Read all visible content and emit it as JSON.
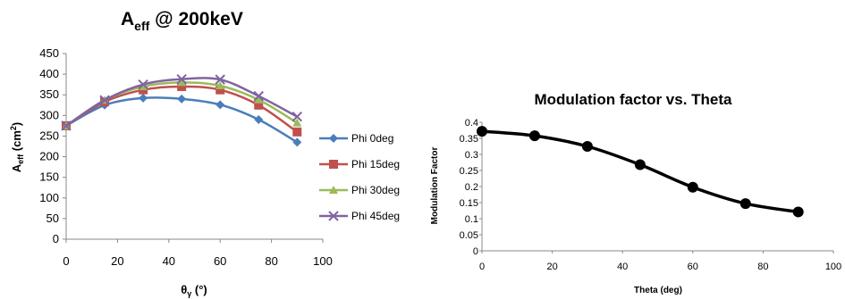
{
  "chart_data": [
    {
      "type": "line",
      "title": {
        "main": "A",
        "sub": "eff",
        "rest": " @ 200keV"
      },
      "ylabel": {
        "main": "A",
        "sub": "eff",
        "rest": " (cm",
        "sup": "2",
        "end": ")"
      },
      "xlabel": {
        "main": "θ",
        "sub": "γ",
        "rest": " (°)"
      },
      "x": [
        0,
        15,
        30,
        45,
        60,
        75,
        90
      ],
      "xlim": [
        0,
        100
      ],
      "xticks": [
        0,
        20,
        40,
        60,
        80,
        100
      ],
      "ylim": [
        0,
        450
      ],
      "yticks": [
        0,
        50,
        100,
        150,
        200,
        250,
        300,
        350,
        400,
        450
      ],
      "grid": false,
      "legend": "right",
      "series": [
        {
          "name": "Phi 0deg",
          "color": "#4a7ebb",
          "marker": "diamond",
          "values": [
            275,
            325,
            342,
            340,
            326,
            290,
            235
          ]
        },
        {
          "name": "Phi 15deg",
          "color": "#c0504d",
          "marker": "square",
          "values": [
            275,
            333,
            362,
            370,
            362,
            325,
            260
          ]
        },
        {
          "name": "Phi 30deg",
          "color": "#9bbb59",
          "marker": "triangle",
          "values": [
            275,
            337,
            370,
            380,
            372,
            338,
            282
          ]
        },
        {
          "name": "Phi 45deg",
          "color": "#8064a2",
          "marker": "x",
          "values": [
            275,
            337,
            375,
            388,
            387,
            347,
            297
          ]
        }
      ]
    },
    {
      "type": "line",
      "title": "Modulation factor vs. Theta",
      "xlabel": "Theta (deg)",
      "ylabel": "Modulation Factor",
      "x": [
        0,
        15,
        30,
        45,
        60,
        75,
        90
      ],
      "xlim": [
        0,
        100
      ],
      "xticks": [
        0,
        20,
        40,
        60,
        80,
        100
      ],
      "ylim": [
        0,
        0.4
      ],
      "yticks": [
        "0",
        "0.05",
        "0.1",
        "0.15",
        "0.2",
        "0.25",
        "0.3",
        "0.35",
        "0.4"
      ],
      "grid": false,
      "legend": "none",
      "series": [
        {
          "color": "#000000",
          "marker": "circle",
          "values": [
            0.372,
            0.358,
            0.325,
            0.268,
            0.198,
            0.147,
            0.121
          ]
        }
      ]
    }
  ]
}
